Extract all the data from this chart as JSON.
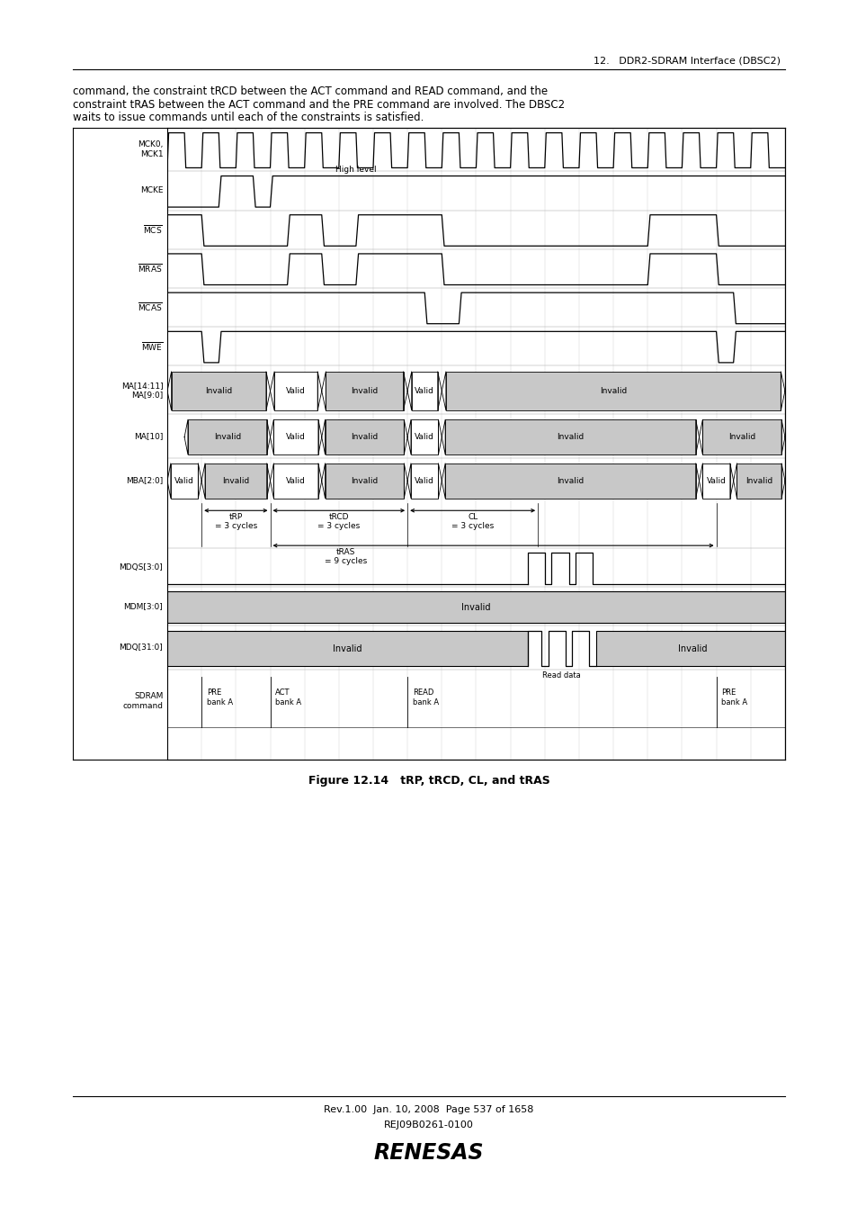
{
  "title_top_right": "12.   DDR2-SDRAM Interface (DBSC2)",
  "body_text": "command, the constraint tRCD between the ACT command and READ command, and the\nconstraint tRAS between the ACT command and the PRE command are involved. The DBSC2\nwaits to issue commands until each of the constraints is satisfied.",
  "figure_caption": "Figure 12.14   tRP, tRCD, CL, and tRAS",
  "footer_left": "Rev.1.00  Jan. 10, 2008  Page 537 of 1658",
  "footer_right": "REJ09B0261-0100",
  "bg_color": "#ffffff",
  "diagram_bg": "#ffffff",
  "gray_fill": "#c8c8c8",
  "page_width": 9.54,
  "page_height": 13.5
}
